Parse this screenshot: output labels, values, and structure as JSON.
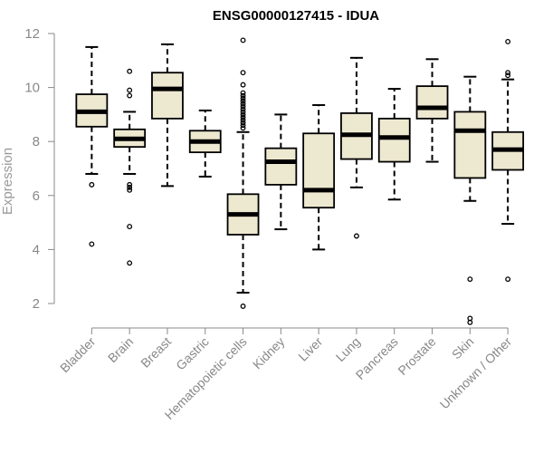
{
  "chart_data": {
    "type": "boxplot",
    "title": "ENSG00000127415 - IDUA",
    "xlabel": "",
    "ylabel": "Expression",
    "ylim": [
      1.3,
      12.3
    ],
    "yticks": [
      2,
      4,
      6,
      8,
      10,
      12
    ],
    "grid": false,
    "colors": {
      "box_fill": "#ede8d0",
      "stroke": "#000000",
      "axis": "#888888"
    },
    "categories": [
      "Bladder",
      "Brain",
      "Breast",
      "Gastric",
      "Hematopoietic cells",
      "Kidney",
      "Liver",
      "Lung",
      "Pancreas",
      "Prostate",
      "Skin",
      "Unknown / Other"
    ],
    "boxes": [
      {
        "category": "Bladder",
        "whisker_low": 6.8,
        "q1": 8.55,
        "median": 9.1,
        "q3": 9.75,
        "whisker_high": 11.5,
        "outliers": [
          6.4,
          4.2
        ]
      },
      {
        "category": "Brain",
        "whisker_low": 6.8,
        "q1": 7.8,
        "median": 8.1,
        "q3": 8.45,
        "whisker_high": 9.1,
        "outliers": [
          10.6,
          9.9,
          9.7,
          6.4,
          6.3,
          6.2,
          4.85,
          3.5
        ]
      },
      {
        "category": "Breast",
        "whisker_low": 6.35,
        "q1": 8.85,
        "median": 9.95,
        "q3": 10.55,
        "whisker_high": 11.6,
        "outliers": []
      },
      {
        "category": "Gastric",
        "whisker_low": 6.7,
        "q1": 7.6,
        "median": 8.0,
        "q3": 8.4,
        "whisker_high": 9.15,
        "outliers": []
      },
      {
        "category": "Hematopoietic cells",
        "whisker_low": 2.4,
        "q1": 4.55,
        "median": 5.3,
        "q3": 6.05,
        "whisker_high": 8.35,
        "outliers": [
          11.75,
          10.55,
          10.1,
          9.8,
          9.7,
          9.6,
          9.5,
          9.4,
          9.3,
          9.2,
          9.1,
          9.0,
          8.9,
          8.8,
          8.7,
          8.6,
          8.5,
          1.9
        ]
      },
      {
        "category": "Kidney",
        "whisker_low": 4.75,
        "q1": 6.4,
        "median": 7.25,
        "q3": 7.75,
        "whisker_high": 9.0,
        "outliers": []
      },
      {
        "category": "Liver",
        "whisker_low": 4.0,
        "q1": 5.55,
        "median": 6.2,
        "q3": 8.3,
        "whisker_high": 9.35,
        "outliers": []
      },
      {
        "category": "Lung",
        "whisker_low": 6.3,
        "q1": 7.35,
        "median": 8.25,
        "q3": 9.05,
        "whisker_high": 11.1,
        "outliers": [
          4.5
        ]
      },
      {
        "category": "Pancreas",
        "whisker_low": 5.85,
        "q1": 7.25,
        "median": 8.15,
        "q3": 8.85,
        "whisker_high": 9.95,
        "outliers": []
      },
      {
        "category": "Prostate",
        "whisker_low": 7.25,
        "q1": 8.85,
        "median": 9.25,
        "q3": 10.05,
        "whisker_high": 11.05,
        "outliers": []
      },
      {
        "category": "Skin",
        "whisker_low": 5.8,
        "q1": 6.65,
        "median": 8.4,
        "q3": 9.1,
        "whisker_high": 10.4,
        "outliers": [
          2.9,
          1.45,
          1.3
        ]
      },
      {
        "category": "Unknown / Other",
        "whisker_low": 4.95,
        "q1": 6.95,
        "median": 7.7,
        "q3": 8.35,
        "whisker_high": 10.3,
        "outliers": [
          11.7,
          10.55,
          10.45,
          2.9
        ]
      }
    ]
  }
}
